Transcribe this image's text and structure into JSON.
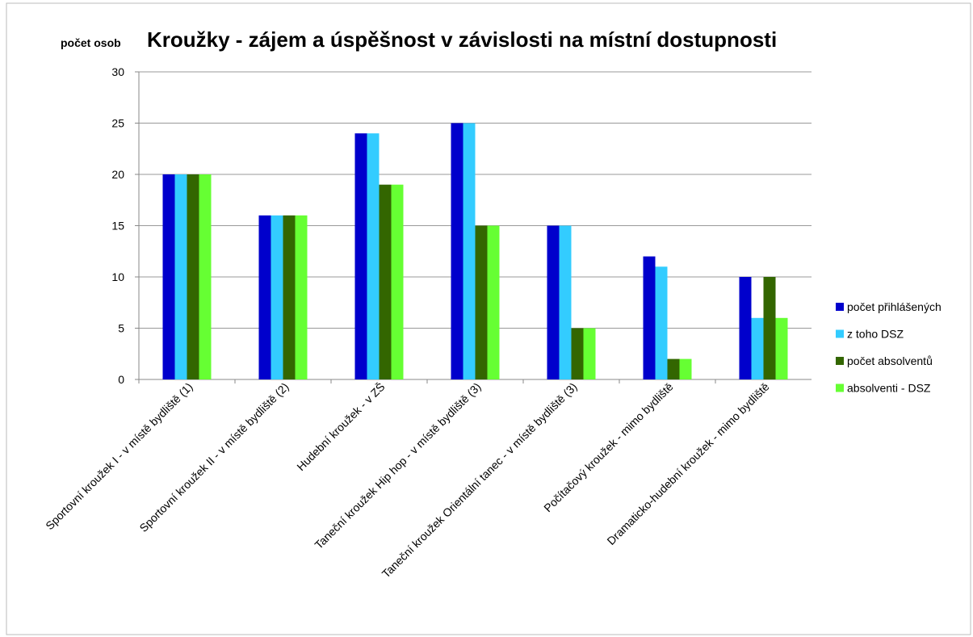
{
  "chart_data": {
    "type": "bar",
    "title": "Kroužky - zájem a úspěšnost v závislosti na místní dostupnosti",
    "y_label": "počet osob",
    "categories": [
      "Sportovní kroužek I - v místě bydliště (1)",
      "Sportovní kroužek II - v místě bydliště (2)",
      "Hudební kroužek - v ZŠ",
      "Taneční kroužek Hip hop - v místě bydliště (3)",
      "Taneční kroužek Orientální tanec - v místě bydliště (3)",
      "Počítačový kroužek - mimo bydliště",
      "Dramaticko-hudební kroužek - mimo bydliště"
    ],
    "series": [
      {
        "name": "počet přihlášených",
        "color": "#0000cc",
        "values": [
          20,
          16,
          24,
          25,
          15,
          12,
          10
        ]
      },
      {
        "name": "z toho DSZ",
        "color": "#33ccff",
        "values": [
          20,
          16,
          24,
          25,
          15,
          11,
          6
        ]
      },
      {
        "name": "počet absolventů",
        "color": "#336600",
        "values": [
          20,
          16,
          19,
          15,
          5,
          2,
          10
        ]
      },
      {
        "name": "absolventi - DSZ",
        "color": "#66ff33",
        "values": [
          20,
          16,
          19,
          15,
          5,
          2,
          6
        ]
      }
    ],
    "ylim": [
      0,
      30
    ],
    "yticks": [
      0,
      5,
      10,
      15,
      20,
      25,
      30
    ],
    "grid": true,
    "legend": "right"
  }
}
